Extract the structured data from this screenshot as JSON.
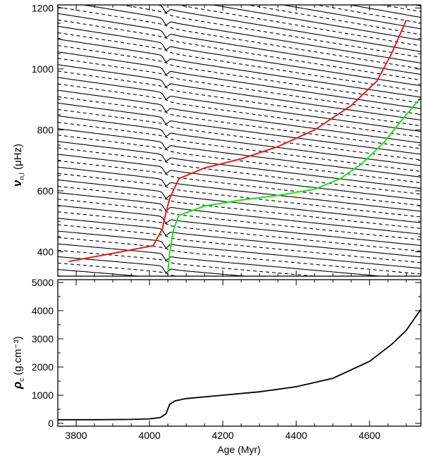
{
  "chart_data": [
    {
      "type": "line",
      "ylabel_main": "ν",
      "ylabel_sub": "n,l",
      "ylabel_unit": "(μHz)",
      "xlim": [
        3750,
        4740
      ],
      "ylim": [
        320,
        1210
      ],
      "yticks": [
        400,
        600,
        800,
        1000,
        1200
      ],
      "grid": false,
      "note": "Dense family of mode-frequency tracks (solid l=1, dashed l=0) with avoided crossings near 4050 Myr",
      "series": [
        {
          "color": "#e02020",
          "x": [
            3780,
            3900,
            4010,
            4035,
            4045,
            4055,
            4080,
            4150,
            4250,
            4350,
            4450,
            4550,
            4620,
            4660,
            4700
          ],
          "values": [
            368,
            395,
            420,
            475,
            530,
            575,
            640,
            675,
            705,
            745,
            800,
            880,
            960,
            1050,
            1160
          ]
        },
        {
          "color": "#20e020",
          "x": [
            4050,
            4055,
            4065,
            4080,
            4150,
            4250,
            4350,
            4450,
            4520,
            4580,
            4640,
            4700,
            4740
          ],
          "values": [
            330,
            400,
            470,
            520,
            550,
            570,
            585,
            605,
            640,
            690,
            760,
            850,
            905
          ]
        }
      ]
    },
    {
      "type": "line",
      "ylabel_main": "ρ",
      "ylabel_sub": "c",
      "ylabel_unit": "(g.cm⁻³)",
      "xlabel": "Age (Myr)",
      "xlim": [
        3750,
        4740
      ],
      "ylim": [
        -100,
        5100
      ],
      "xticks": [
        3800,
        4000,
        4200,
        4400,
        4600
      ],
      "yticks": [
        0,
        1000,
        2000,
        3000,
        4000,
        5000
      ],
      "grid": false,
      "series": [
        {
          "color": "#000000",
          "x": [
            3750,
            3850,
            3950,
            4000,
            4030,
            4045,
            4055,
            4070,
            4100,
            4200,
            4300,
            4400,
            4500,
            4600,
            4660,
            4700,
            4740
          ],
          "values": [
            130,
            130,
            140,
            160,
            210,
            340,
            680,
            800,
            880,
            1000,
            1120,
            1300,
            1600,
            2200,
            2800,
            3300,
            4050
          ]
        }
      ]
    }
  ]
}
